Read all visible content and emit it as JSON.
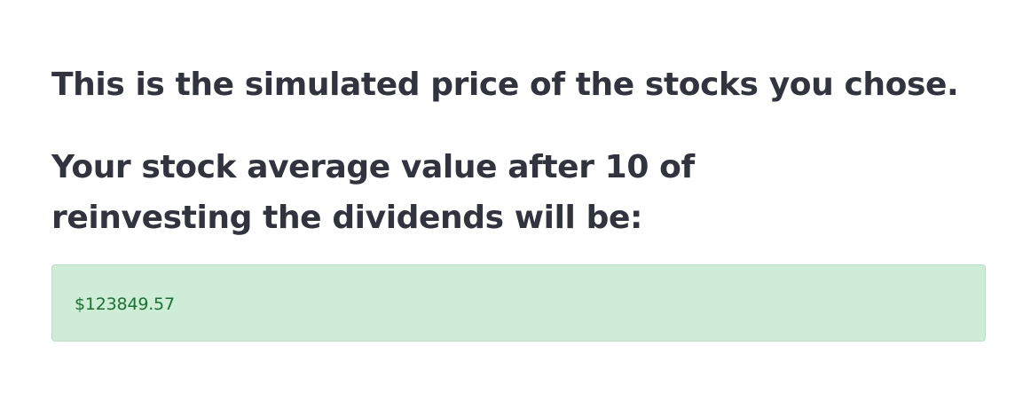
{
  "page": {
    "subtitle": "This is the simulated price of the stocks you chose.",
    "result_heading": "Your stock average value after 10 of reinvesting the dividends will be:",
    "result_value": "$123849.57"
  },
  "colors": {
    "text": "#31333f",
    "success_background": "#cfecd6",
    "success_text": "#177233"
  }
}
